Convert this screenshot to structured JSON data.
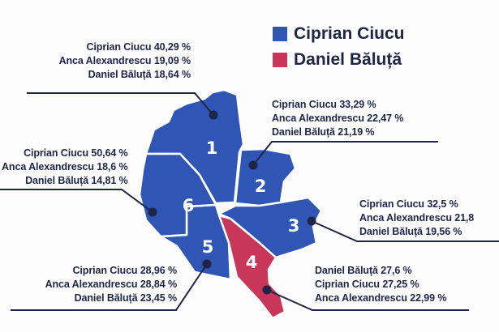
{
  "legend": [
    {
      "label": "Ciprian Ciucu",
      "color": "#2f55b5"
    },
    {
      "label": "Daniel Băluță",
      "color": "#c8375a"
    }
  ],
  "colors": {
    "text": "#1f2547",
    "border": "#ffffff",
    "leader": "#1f2547"
  },
  "sectors": [
    {
      "number": "1",
      "winner": "Ciprian Ciucu",
      "results": [
        "Ciprian Ciucu 40,29 %",
        "Anca Alexandrescu 19,09 %",
        "Daniel Băluță 18,64 %"
      ]
    },
    {
      "number": "2",
      "winner": "Ciprian Ciucu",
      "results": [
        "Ciprian Ciucu 33,29 %",
        "Anca Alexandrescu 22,47 %",
        "Daniel Băluță 21,19 %"
      ]
    },
    {
      "number": "3",
      "winner": "Ciprian Ciucu",
      "results": [
        "Ciprian Ciucu 32,5 %",
        "Anca Alexandrescu 21,8",
        "Daniel Băluță 19,56 %"
      ]
    },
    {
      "number": "4",
      "winner": "Daniel Băluță",
      "results": [
        "Daniel Băluță 27,6 %",
        "Ciprian Ciucu 27,25 %",
        "Anca Alexandrescu 22,99 %"
      ]
    },
    {
      "number": "5",
      "winner": "Ciprian Ciucu",
      "results": [
        "Ciprian Ciucu 28,96 %",
        "Anca Alexandrescu 28,84 %",
        "Daniel Băluță 23,45 %"
      ]
    },
    {
      "number": "6",
      "winner": "Ciprian Ciucu",
      "results": [
        "Ciprian Ciucu 50,64 %",
        "Anca Alexandrescu 18,6 %",
        "Daniel Băluță 14,81 %"
      ]
    }
  ]
}
